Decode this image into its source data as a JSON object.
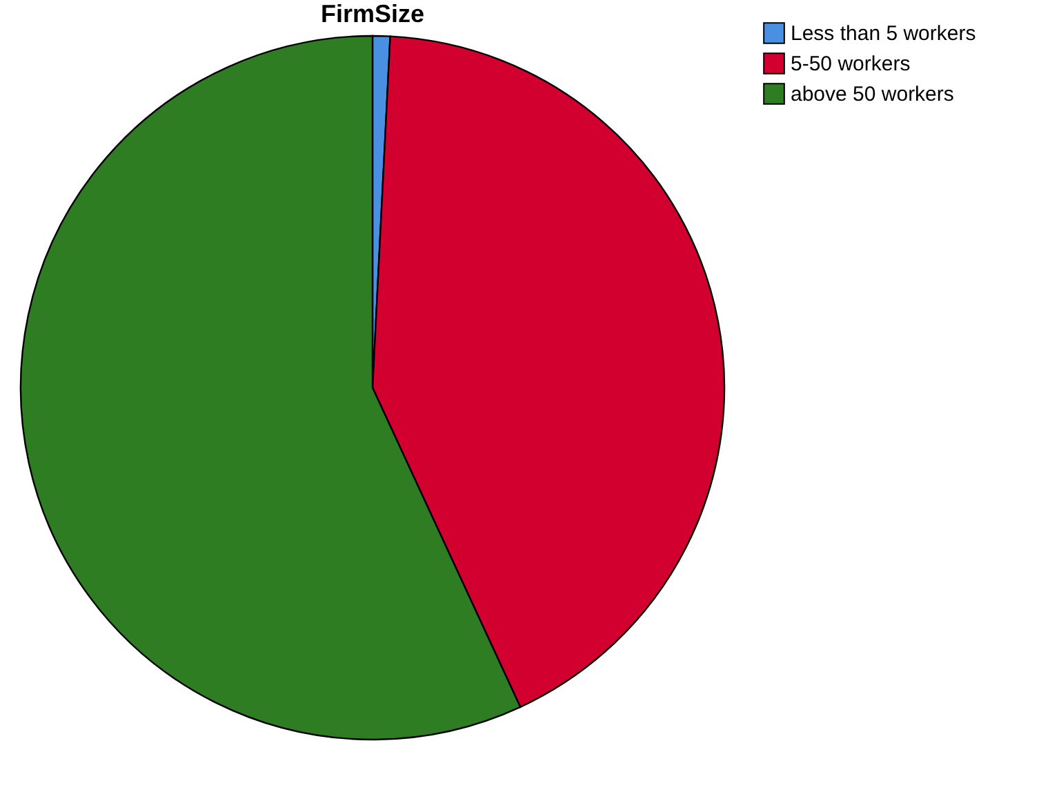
{
  "chart_data": {
    "type": "pie",
    "title": "FirmSize",
    "categories": [
      "Less than 5 workers",
      "5-50 workers",
      "above 50 workers"
    ],
    "values": [
      0.8,
      42.3,
      56.9
    ],
    "colors": [
      "#4a90e2",
      "#d2002f",
      "#2e7d23"
    ],
    "legend": "top right"
  }
}
